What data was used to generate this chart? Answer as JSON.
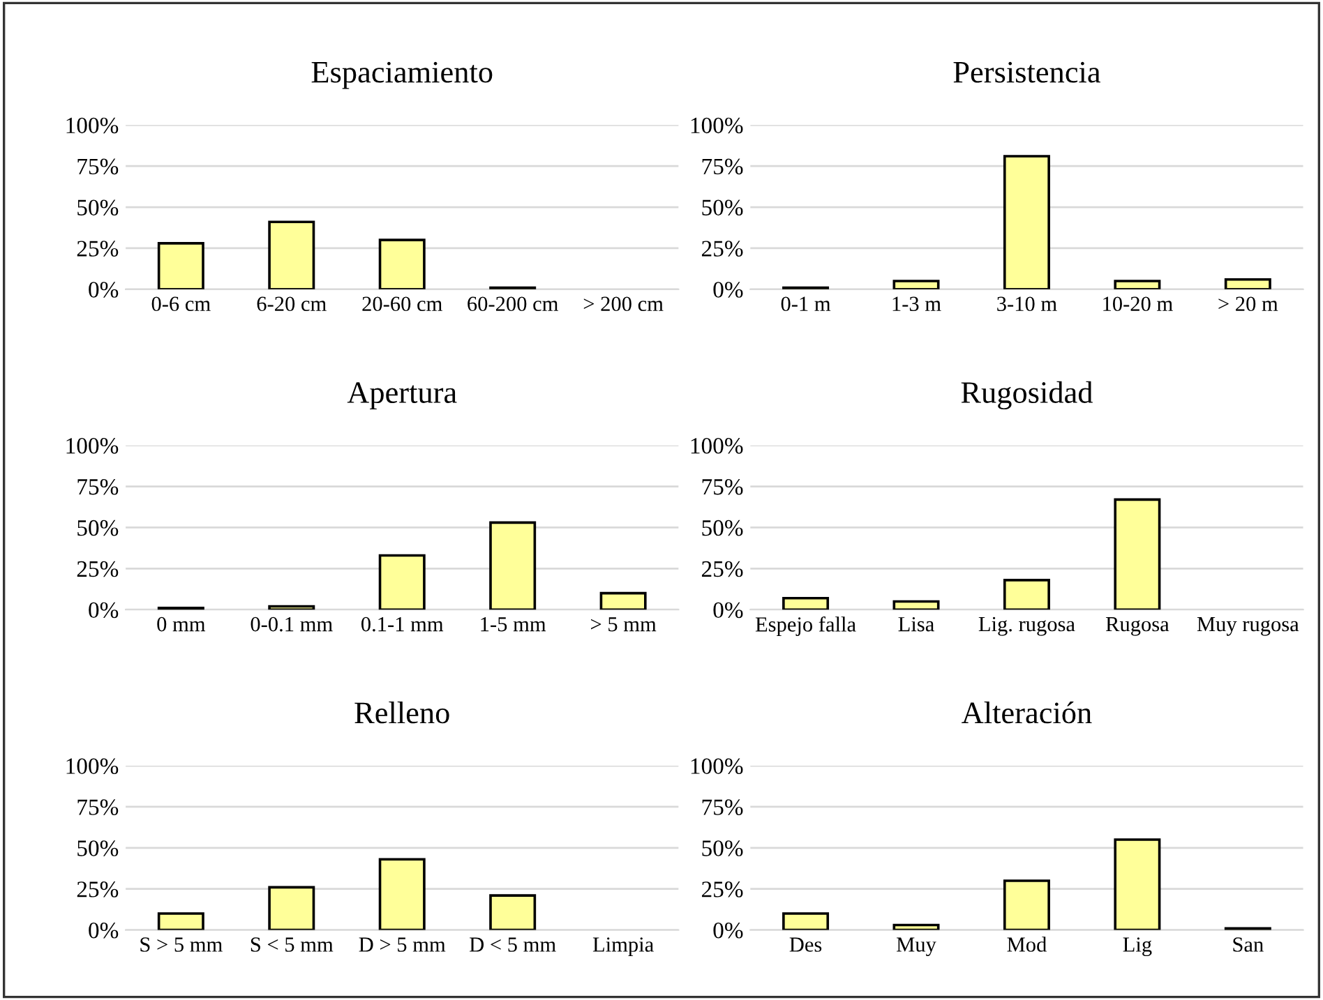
{
  "chart_data": [
    {
      "type": "bar",
      "title": "Espaciamiento",
      "categories": [
        "0-6 cm",
        "6-20 cm",
        "20-60 cm",
        "60-200 cm",
        "> 200 cm"
      ],
      "values": [
        28,
        41,
        30,
        1,
        0
      ],
      "color": "#ffff99",
      "ylim": [
        0,
        100
      ],
      "yticks": [
        {
          "value": 0,
          "label": "0%"
        },
        {
          "value": 25,
          "label": "25%"
        },
        {
          "value": 50,
          "label": "50%"
        },
        {
          "value": 75,
          "label": "75%"
        },
        {
          "value": 100,
          "label": "100%"
        }
      ],
      "grid": "y"
    },
    {
      "type": "bar",
      "title": "Persistencia",
      "categories": [
        "0-1 m",
        "1-3 m",
        "3-10 m",
        "10-20 m",
        "> 20 m"
      ],
      "values": [
        1,
        5,
        81,
        5,
        6
      ],
      "color": "#ffff99",
      "ylim": [
        0,
        100
      ],
      "yticks": [
        {
          "value": 0,
          "label": "0%"
        },
        {
          "value": 25,
          "label": "25%"
        },
        {
          "value": 50,
          "label": "50%"
        },
        {
          "value": 75,
          "label": "75%"
        },
        {
          "value": 100,
          "label": "100%"
        }
      ],
      "grid": "y"
    },
    {
      "type": "bar",
      "title": "Apertura",
      "categories": [
        "0 mm",
        "0-0.1 mm",
        "0.1-1 mm",
        "1-5 mm",
        "> 5 mm"
      ],
      "values": [
        1,
        2,
        33,
        53,
        10
      ],
      "color": "#ffff99",
      "ylim": [
        0,
        100
      ],
      "yticks": [
        {
          "value": 0,
          "label": "0%"
        },
        {
          "value": 25,
          "label": "25%"
        },
        {
          "value": 50,
          "label": "50%"
        },
        {
          "value": 75,
          "label": "75%"
        },
        {
          "value": 100,
          "label": "100%"
        }
      ],
      "grid": "y"
    },
    {
      "type": "bar",
      "title": "Rugosidad",
      "categories": [
        "Espejo falla",
        "Lisa",
        "Lig. rugosa",
        "Rugosa",
        "Muy rugosa"
      ],
      "values": [
        7,
        5,
        18,
        67,
        0
      ],
      "color": "#ffff99",
      "ylim": [
        0,
        100
      ],
      "yticks": [
        {
          "value": 0,
          "label": "0%"
        },
        {
          "value": 25,
          "label": "25%"
        },
        {
          "value": 50,
          "label": "50%"
        },
        {
          "value": 75,
          "label": "75%"
        },
        {
          "value": 100,
          "label": "100%"
        }
      ],
      "grid": "y"
    },
    {
      "type": "bar",
      "title": "Relleno",
      "categories": [
        "S > 5 mm",
        "S < 5 mm",
        "D > 5 mm",
        "D < 5 mm",
        "Limpia"
      ],
      "values": [
        10,
        26,
        43,
        21,
        0
      ],
      "color": "#ffff99",
      "ylim": [
        0,
        100
      ],
      "yticks": [
        {
          "value": 0,
          "label": "0%"
        },
        {
          "value": 25,
          "label": "25%"
        },
        {
          "value": 50,
          "label": "50%"
        },
        {
          "value": 75,
          "label": "75%"
        },
        {
          "value": 100,
          "label": "100%"
        }
      ],
      "grid": "y"
    },
    {
      "type": "bar",
      "title": "Alteración",
      "categories": [
        "Des",
        "Muy",
        "Mod",
        "Lig",
        "San"
      ],
      "values": [
        10,
        3,
        30,
        55,
        1
      ],
      "color": "#ffff99",
      "ylim": [
        0,
        100
      ],
      "yticks": [
        {
          "value": 0,
          "label": "0%"
        },
        {
          "value": 25,
          "label": "25%"
        },
        {
          "value": 50,
          "label": "50%"
        },
        {
          "value": 75,
          "label": "75%"
        },
        {
          "value": 100,
          "label": "100%"
        }
      ],
      "grid": "y"
    }
  ]
}
